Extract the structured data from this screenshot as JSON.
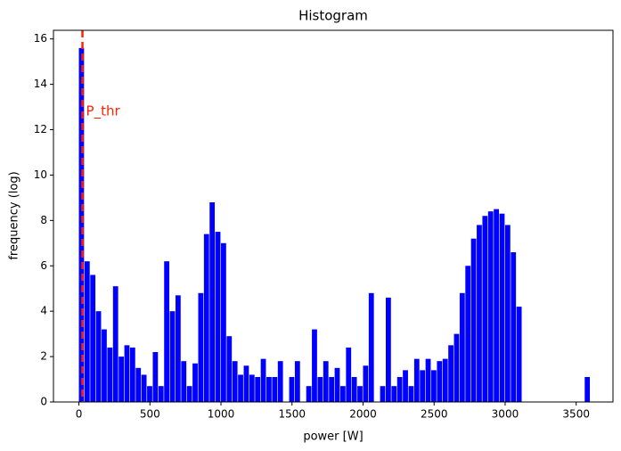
{
  "chart_data": {
    "type": "histogram",
    "title": "Histogram",
    "x_label": "power [W]",
    "y_label": "frequency (log)",
    "bins": [
      0,
      40,
      80,
      120,
      160,
      200,
      240,
      280,
      320,
      360,
      400,
      440,
      480,
      520,
      560,
      600,
      640,
      680,
      720,
      760,
      800,
      840,
      880,
      920,
      960,
      1000,
      1040,
      1080,
      1120,
      1160,
      1200,
      1240,
      1280,
      1320,
      1360,
      1400,
      1440,
      1480,
      1520,
      1560,
      1600,
      1640,
      1680,
      1720,
      1760,
      1800,
      1840,
      1880,
      1920,
      1960,
      2000,
      2040,
      2080,
      2120,
      2160,
      2200,
      2240,
      2280,
      2320,
      2360,
      2400,
      2440,
      2480,
      2520,
      2560,
      2600,
      2640,
      2680,
      2720,
      2760,
      2800,
      2840,
      2880,
      2920,
      2960,
      3000,
      3040,
      3080,
      3120,
      3160,
      3200,
      3240,
      3280,
      3320,
      3360,
      3400,
      3440,
      3480,
      3520,
      3560,
      3600
    ],
    "values": [
      15.6,
      6.2,
      5.6,
      4.0,
      3.2,
      2.4,
      5.1,
      2.0,
      2.5,
      2.4,
      1.5,
      1.2,
      0.7,
      2.2,
      0.7,
      6.2,
      4.0,
      4.7,
      1.8,
      0.7,
      1.7,
      4.8,
      7.4,
      8.8,
      7.5,
      7.0,
      2.9,
      1.8,
      1.2,
      1.6,
      1.2,
      1.1,
      1.9,
      1.1,
      1.1,
      1.8,
      0,
      1.1,
      1.8,
      0,
      0.7,
      3.2,
      1.1,
      1.8,
      1.1,
      1.5,
      0.7,
      2.4,
      1.1,
      0.7,
      1.6,
      4.8,
      0,
      0.7,
      4.6,
      0.7,
      1.1,
      1.4,
      0.7,
      1.9,
      1.4,
      1.9,
      1.4,
      1.8,
      1.9,
      2.5,
      3.0,
      4.8,
      6.0,
      7.2,
      7.8,
      8.2,
      8.4,
      8.5,
      8.3,
      7.8,
      6.6,
      4.2,
      0,
      0,
      0,
      0,
      0,
      0,
      0,
      0,
      0,
      0,
      0,
      1.1
    ],
    "color": "#0000ff",
    "xlim": [
      -179,
      3759
    ],
    "xticks": [
      0,
      500,
      1000,
      1500,
      2000,
      2500,
      3000,
      3500
    ],
    "ylim": [
      0,
      16.38
    ],
    "yticks": [
      0,
      2,
      4,
      6,
      8,
      10,
      12,
      14,
      16
    ],
    "grid": false,
    "threshold": {
      "x": 25,
      "label": "P_thr",
      "color": "#ff2200"
    }
  }
}
